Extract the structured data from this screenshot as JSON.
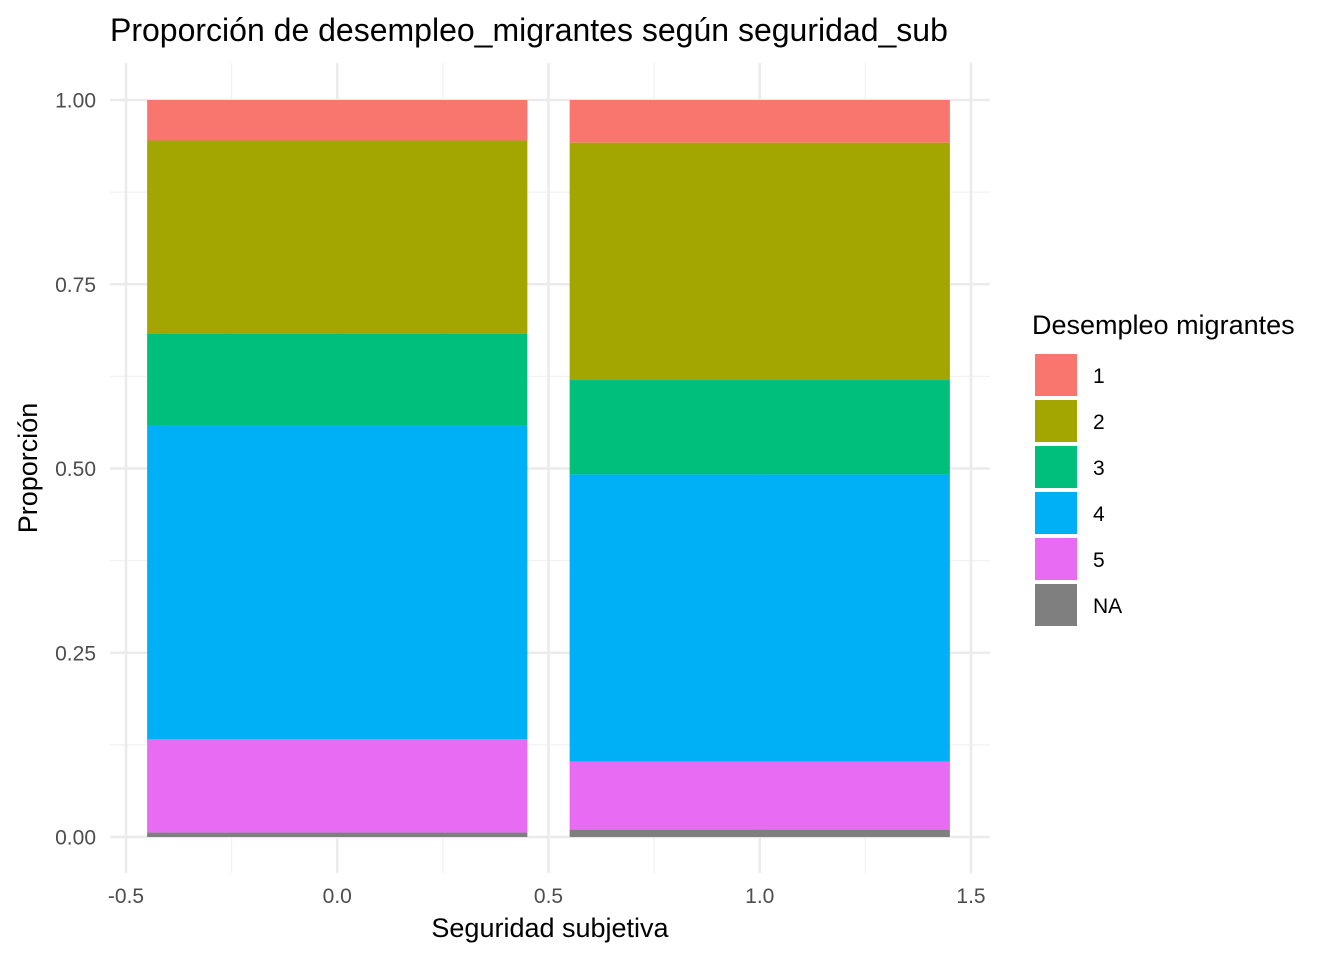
{
  "chart_data": {
    "type": "bar",
    "stacked": true,
    "position": "fill",
    "title": "Proporción de desempleo_migrantes según seguridad_sub",
    "xlabel": "Seguridad subjetiva",
    "ylabel": "Proporción",
    "x": [
      0,
      1
    ],
    "bar_width": 0.9,
    "xlim": [
      -0.5,
      1.5
    ],
    "ylim": [
      0,
      1
    ],
    "x_ticks": [
      "-0.5",
      "0.0",
      "0.5",
      "1.0",
      "1.5"
    ],
    "x_tick_values": [
      -0.5,
      0,
      0.5,
      1,
      1.5
    ],
    "y_ticks": [
      "0.00",
      "0.25",
      "0.50",
      "0.75",
      "1.00"
    ],
    "y_tick_values": [
      0,
      0.25,
      0.5,
      0.75,
      1
    ],
    "grid": true,
    "legend": {
      "title": "Desempleo migrantes",
      "position": "right",
      "entries": [
        "1",
        "2",
        "3",
        "4",
        "5",
        "NA"
      ]
    },
    "series": [
      {
        "name": "1",
        "color": "#F8766D",
        "values": [
          0.055,
          0.058
        ]
      },
      {
        "name": "2",
        "color": "#A3A500",
        "values": [
          0.262,
          0.322
        ]
      },
      {
        "name": "3",
        "color": "#00BF7D",
        "values": [
          0.124,
          0.128
        ]
      },
      {
        "name": "4",
        "color": "#00B0F6",
        "values": [
          0.426,
          0.39
        ]
      },
      {
        "name": "5",
        "color": "#E76BF3",
        "values": [
          0.127,
          0.092
        ]
      },
      {
        "name": "NA",
        "color": "#7F7F7F",
        "values": [
          0.006,
          0.01
        ]
      }
    ]
  }
}
